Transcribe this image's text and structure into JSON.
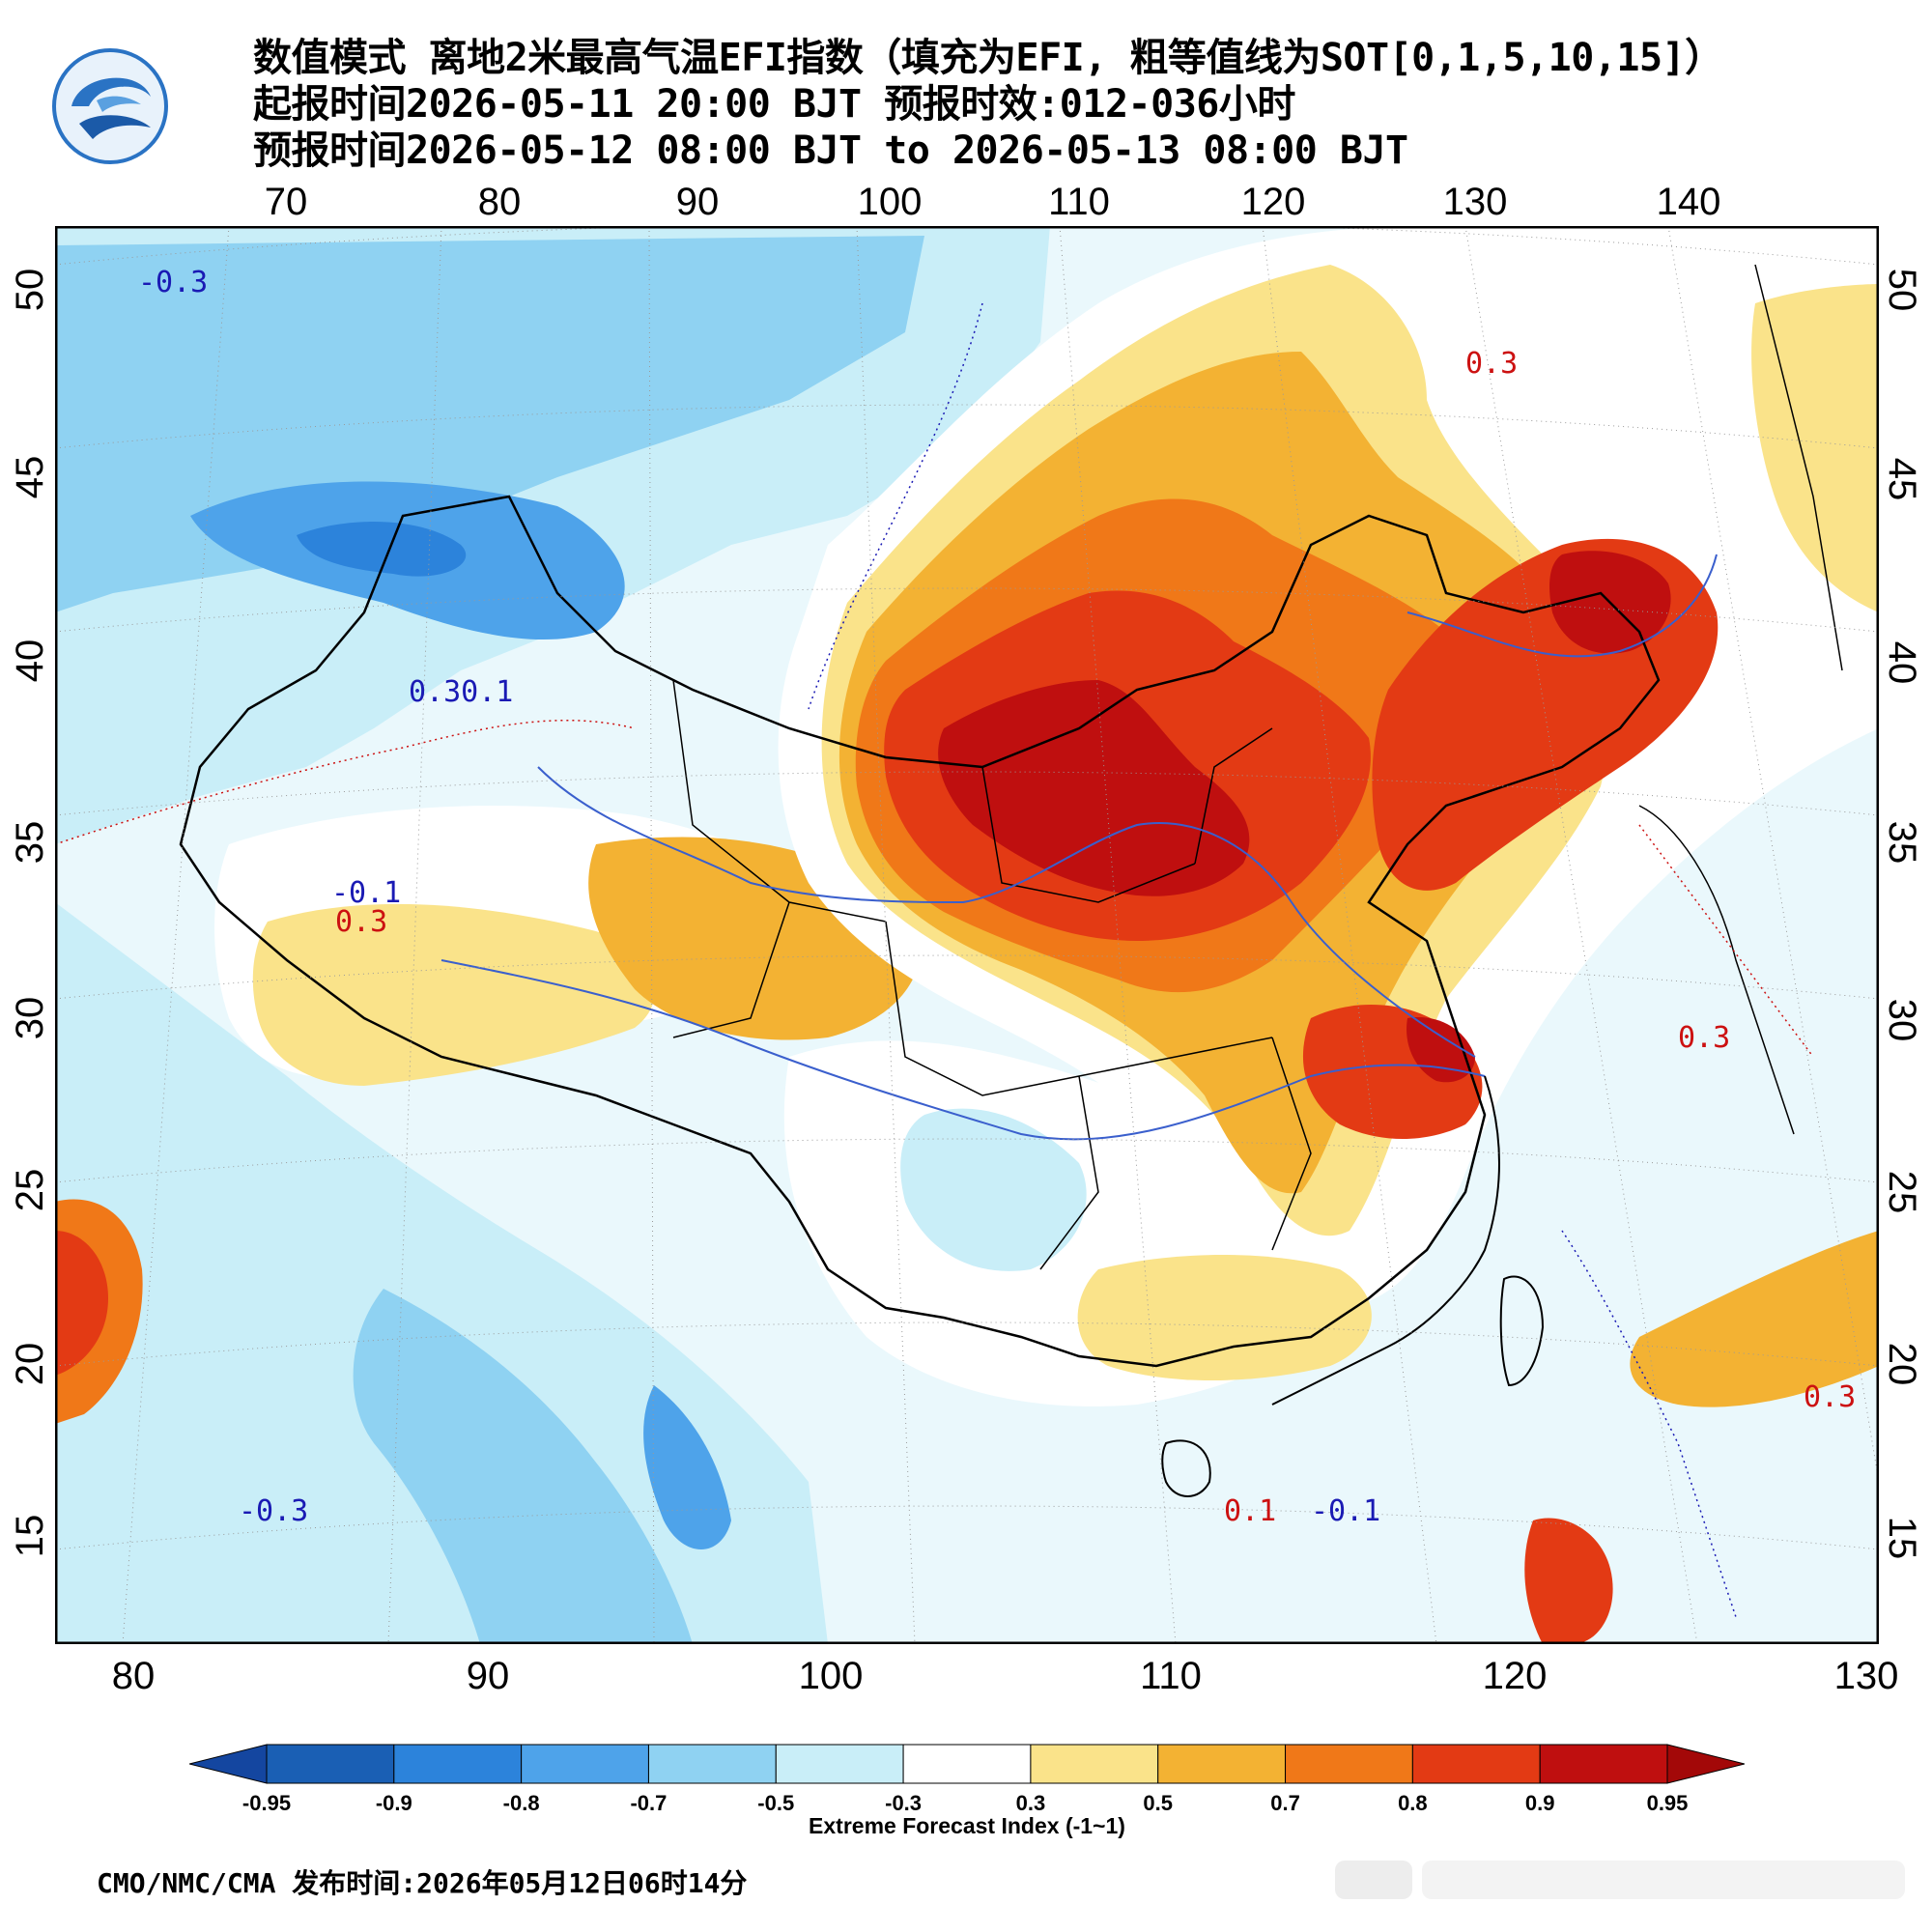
{
  "header": {
    "title_line1": "数值模式 离地2米最高气温EFI指数（填充为EFI, 粗等值线为SOT[0,1,5,10,15]）",
    "title_line2": "起报时间2026-05-11 20:00 BJT 预报时效:012-036小时",
    "title_line3": "预报时间2026-05-12 08:00 BJT to 2026-05-13 08:00 BJT"
  },
  "map": {
    "top_lon_ticks": [
      "70",
      "80",
      "90",
      "100",
      "110",
      "120",
      "130",
      "140"
    ],
    "bottom_lon_ticks": [
      "80",
      "90",
      "100",
      "110",
      "120",
      "130"
    ],
    "left_lat_ticks": [
      "50",
      "45",
      "40",
      "35",
      "30",
      "25",
      "20",
      "15"
    ],
    "right_lat_ticks": [
      "50",
      "45",
      "40",
      "35",
      "30",
      "25",
      "20",
      "15"
    ],
    "contour_labels": {
      "neg_03": "-0.3",
      "neg_01": "-0.1",
      "pos_01": "0.1",
      "pos_03": "0.3",
      "combo_0301": "0.30.1"
    }
  },
  "colorbar": {
    "labels": [
      "-0.95",
      "-0.9",
      "-0.8",
      "-0.7",
      "-0.5",
      "-0.3",
      "0.3",
      "0.5",
      "0.7",
      "0.8",
      "0.9",
      "0.95"
    ],
    "colors": [
      "#1a5fb4",
      "#2c83db",
      "#4ea3ea",
      "#8fd2f2",
      "#c9eef8",
      "#ffffff",
      "#fae38a",
      "#f3b233",
      "#f07818",
      "#e33a14",
      "#bf0f0f"
    ],
    "low_arrow_color": "#1446a0",
    "high_arrow_color": "#a30808",
    "title": "Extreme Forecast Index (-1~1)"
  },
  "footer": {
    "text": "CMO/NMC/CMA 发布时间:2026年05月12日06时14分"
  },
  "colors": {
    "neg_contour": "#1a1ab4",
    "pos_contour": "#cc1111",
    "border": "#000000",
    "river": "#3a5fcd"
  }
}
